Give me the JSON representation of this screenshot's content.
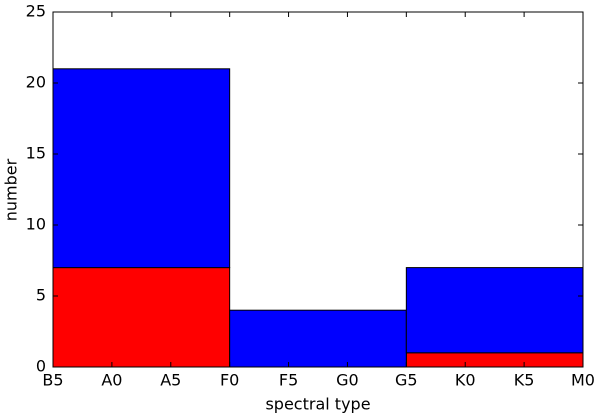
{
  "chart_data": {
    "type": "histogram",
    "x_label": "spectral type",
    "y_label": "number",
    "bins": [
      0,
      3,
      6,
      9
    ],
    "series": [
      {
        "color": "#ff0000",
        "values": [
          7,
          0,
          1
        ]
      },
      {
        "color": "#0000ff",
        "values": [
          14,
          4,
          6
        ]
      }
    ],
    "stacked": true,
    "xlim": [
      0,
      9
    ],
    "xticks": [
      {
        "value": 0,
        "label": "B5"
      },
      {
        "value": 1,
        "label": "A0"
      },
      {
        "value": 2,
        "label": "A5"
      },
      {
        "value": 3,
        "label": "F0"
      },
      {
        "value": 4,
        "label": "F5"
      },
      {
        "value": 5,
        "label": "G0"
      },
      {
        "value": 6,
        "label": "G5"
      },
      {
        "value": 7,
        "label": "K0"
      },
      {
        "value": 8,
        "label": "K5"
      },
      {
        "value": 9,
        "label": "M0"
      }
    ],
    "ylim": [
      0,
      25
    ],
    "yticks": [
      0,
      5,
      10,
      15,
      20,
      25
    ]
  }
}
